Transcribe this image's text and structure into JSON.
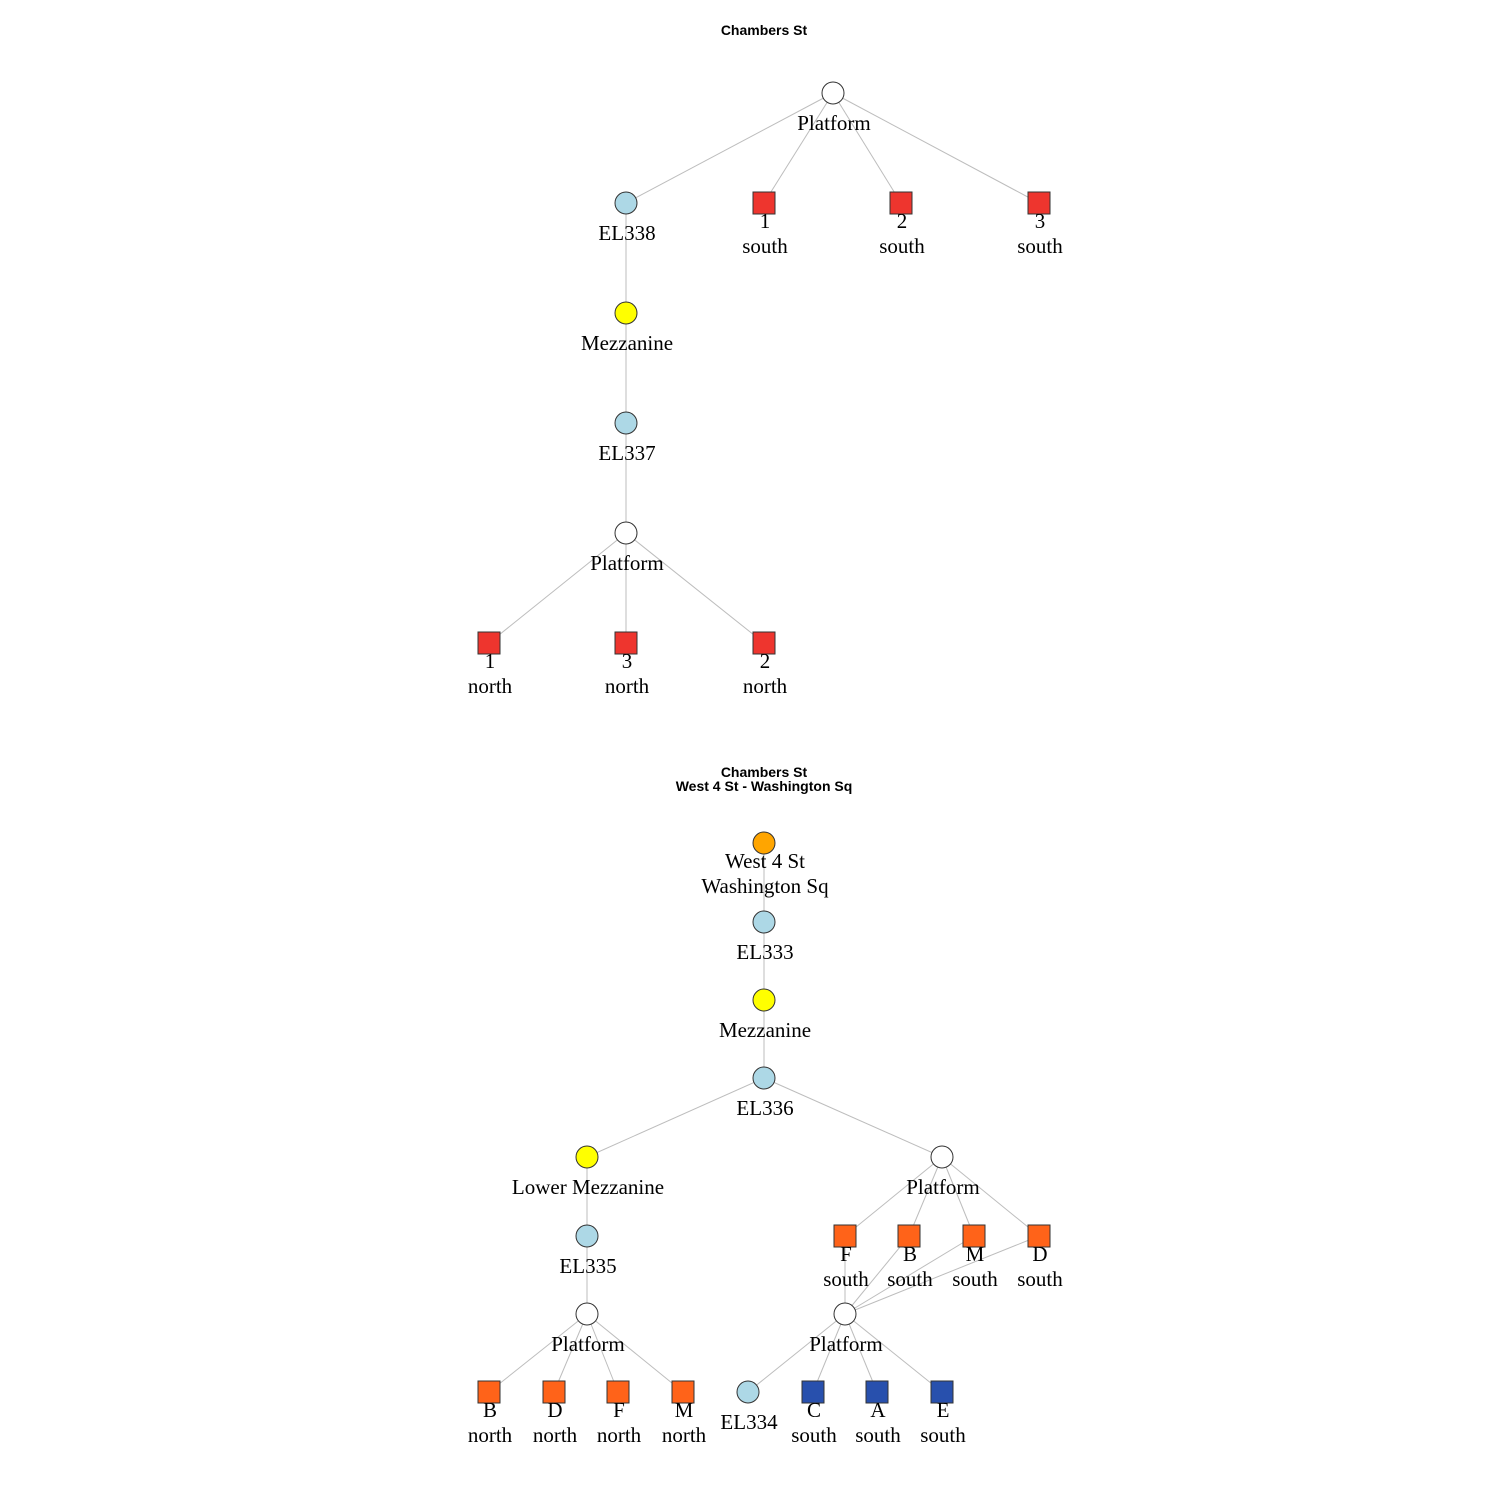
{
  "colors": {
    "white": "#ffffff",
    "elevator": "#add8e6",
    "mezzanine": "#ffff00",
    "street": "#ffa500",
    "red_line": "#ee352e",
    "orange_line": "#ff6319",
    "blue_line": "#2850ad"
  },
  "graphs": [
    {
      "id": "top",
      "titles": [
        "Chambers St"
      ],
      "nodes": [
        {
          "id": "p1",
          "shape": "circle",
          "color": "white",
          "label": [
            "Platform"
          ]
        },
        {
          "id": "el338",
          "shape": "circle",
          "color": "elevator",
          "label": [
            "EL338"
          ]
        },
        {
          "id": "s1",
          "shape": "square",
          "color": "red_line",
          "label": [
            "1",
            "south"
          ]
        },
        {
          "id": "s2",
          "shape": "square",
          "color": "red_line",
          "label": [
            "2",
            "south"
          ]
        },
        {
          "id": "s3",
          "shape": "square",
          "color": "red_line",
          "label": [
            "3",
            "south"
          ]
        },
        {
          "id": "mez",
          "shape": "circle",
          "color": "mezzanine",
          "label": [
            "Mezzanine"
          ]
        },
        {
          "id": "el337",
          "shape": "circle",
          "color": "elevator",
          "label": [
            "EL337"
          ]
        },
        {
          "id": "p2",
          "shape": "circle",
          "color": "white",
          "label": [
            "Platform"
          ]
        },
        {
          "id": "n1",
          "shape": "square",
          "color": "red_line",
          "label": [
            "1",
            "north"
          ]
        },
        {
          "id": "n3",
          "shape": "square",
          "color": "red_line",
          "label": [
            "3",
            "north"
          ]
        },
        {
          "id": "n2",
          "shape": "square",
          "color": "red_line",
          "label": [
            "2",
            "north"
          ]
        }
      ],
      "edges": [
        [
          "p1",
          "el338"
        ],
        [
          "p1",
          "s1"
        ],
        [
          "p1",
          "s2"
        ],
        [
          "p1",
          "s3"
        ],
        [
          "el338",
          "mez"
        ],
        [
          "mez",
          "el337"
        ],
        [
          "el337",
          "p2"
        ],
        [
          "p2",
          "n1"
        ],
        [
          "p2",
          "n3"
        ],
        [
          "p2",
          "n2"
        ]
      ]
    },
    {
      "id": "bottom",
      "titles": [
        "Chambers St",
        "West 4 St - Washington Sq"
      ],
      "nodes": [
        {
          "id": "street",
          "shape": "circle",
          "color": "street",
          "label": [
            "West 4 St",
            "Washington Sq"
          ]
        },
        {
          "id": "el333",
          "shape": "circle",
          "color": "elevator",
          "label": [
            "EL333"
          ]
        },
        {
          "id": "mez",
          "shape": "circle",
          "color": "mezzanine",
          "label": [
            "Mezzanine"
          ]
        },
        {
          "id": "el336",
          "shape": "circle",
          "color": "elevator",
          "label": [
            "EL336"
          ]
        },
        {
          "id": "lmez",
          "shape": "circle",
          "color": "mezzanine",
          "label": [
            "Lower Mezzanine"
          ]
        },
        {
          "id": "el335",
          "shape": "circle",
          "color": "elevator",
          "label": [
            "EL335"
          ]
        },
        {
          "id": "pl",
          "shape": "circle",
          "color": "white",
          "label": [
            "Platform"
          ]
        },
        {
          "id": "bn",
          "shape": "square",
          "color": "orange_line",
          "label": [
            "B",
            "north"
          ]
        },
        {
          "id": "dn",
          "shape": "square",
          "color": "orange_line",
          "label": [
            "D",
            "north"
          ]
        },
        {
          "id": "fn",
          "shape": "square",
          "color": "orange_line",
          "label": [
            "F",
            "north"
          ]
        },
        {
          "id": "mn",
          "shape": "square",
          "color": "orange_line",
          "label": [
            "M",
            "north"
          ]
        },
        {
          "id": "pu",
          "shape": "circle",
          "color": "white",
          "label": [
            "Platform"
          ]
        },
        {
          "id": "fs",
          "shape": "square",
          "color": "orange_line",
          "label": [
            "F",
            "south"
          ]
        },
        {
          "id": "bs",
          "shape": "square",
          "color": "orange_line",
          "label": [
            "B",
            "south"
          ]
        },
        {
          "id": "ms",
          "shape": "square",
          "color": "orange_line",
          "label": [
            "M",
            "south"
          ]
        },
        {
          "id": "ds",
          "shape": "square",
          "color": "orange_line",
          "label": [
            "D",
            "south"
          ]
        },
        {
          "id": "pb",
          "shape": "circle",
          "color": "white",
          "label": [
            "Platform"
          ]
        },
        {
          "id": "el334",
          "shape": "circle",
          "color": "elevator",
          "label": [
            "EL334"
          ]
        },
        {
          "id": "cs",
          "shape": "square",
          "color": "blue_line",
          "label": [
            "C",
            "south"
          ]
        },
        {
          "id": "as",
          "shape": "square",
          "color": "blue_line",
          "label": [
            "A",
            "south"
          ]
        },
        {
          "id": "es",
          "shape": "square",
          "color": "blue_line",
          "label": [
            "E",
            "south"
          ]
        }
      ],
      "edges": [
        [
          "street",
          "el333"
        ],
        [
          "el333",
          "mez"
        ],
        [
          "mez",
          "el336"
        ],
        [
          "el336",
          "lmez"
        ],
        [
          "el336",
          "pu"
        ],
        [
          "lmez",
          "el335"
        ],
        [
          "el335",
          "pl"
        ],
        [
          "pl",
          "bn"
        ],
        [
          "pl",
          "dn"
        ],
        [
          "pl",
          "fn"
        ],
        [
          "pl",
          "mn"
        ],
        [
          "pu",
          "fs"
        ],
        [
          "pu",
          "bs"
        ],
        [
          "pu",
          "ms"
        ],
        [
          "pu",
          "ds"
        ],
        [
          "fs",
          "pb"
        ],
        [
          "bs",
          "pb"
        ],
        [
          "ms",
          "pb"
        ],
        [
          "ds",
          "pb"
        ],
        [
          "pb",
          "el334"
        ],
        [
          "pb",
          "cs"
        ],
        [
          "pb",
          "as"
        ],
        [
          "pb",
          "es"
        ]
      ]
    }
  ]
}
